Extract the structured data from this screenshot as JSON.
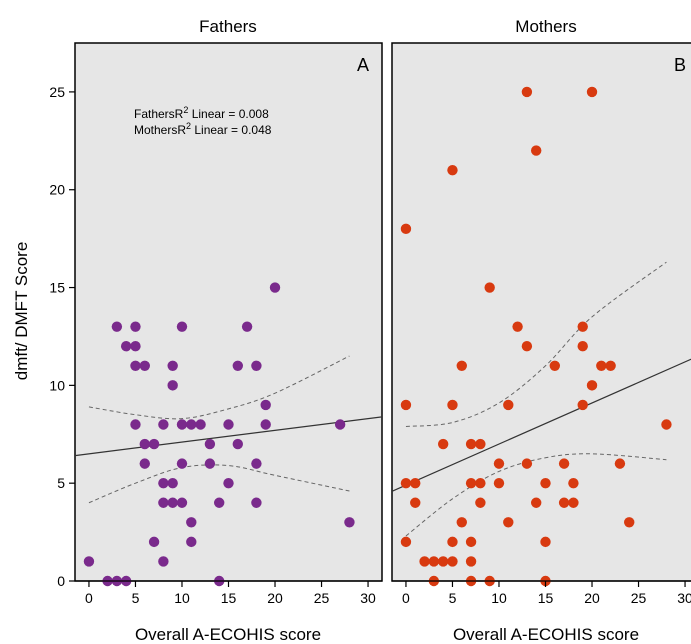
{
  "chart_data": {
    "type": "scatter",
    "ylabel": "dmft/ DMFT Score",
    "ylim": [
      0,
      27.5
    ],
    "yticks": [
      0,
      5,
      10,
      15,
      20,
      25
    ],
    "xlim": [
      -1.5,
      31.5
    ],
    "xticks": [
      0,
      5,
      10,
      15,
      20,
      25,
      30
    ],
    "grid": false,
    "annotations": [
      "FathersR",
      "2",
      " Linear = 0.008",
      "MothersR",
      "2",
      " Linear = 0.048"
    ],
    "panels": [
      {
        "strip_title": "Fathers",
        "letter": "A",
        "xlabel": "Overall A-ECOHIS score",
        "color": "#7a2a8c",
        "points": [
          [
            0,
            1
          ],
          [
            2,
            0
          ],
          [
            3,
            0
          ],
          [
            4,
            0
          ],
          [
            3,
            13
          ],
          [
            4,
            12
          ],
          [
            5,
            13
          ],
          [
            5,
            12
          ],
          [
            5,
            11
          ],
          [
            6,
            11
          ],
          [
            5,
            8
          ],
          [
            6,
            7
          ],
          [
            6,
            6
          ],
          [
            7,
            7
          ],
          [
            7,
            2
          ],
          [
            8,
            1
          ],
          [
            8,
            8
          ],
          [
            8,
            5
          ],
          [
            8,
            4
          ],
          [
            9,
            5
          ],
          [
            9,
            11
          ],
          [
            9,
            10
          ],
          [
            9,
            4
          ],
          [
            10,
            13
          ],
          [
            10,
            8
          ],
          [
            10,
            6
          ],
          [
            10,
            4
          ],
          [
            11,
            8
          ],
          [
            11,
            3
          ],
          [
            11,
            2
          ],
          [
            12,
            8
          ],
          [
            13,
            7
          ],
          [
            13,
            6
          ],
          [
            14,
            4
          ],
          [
            14,
            0
          ],
          [
            15,
            8
          ],
          [
            15,
            5
          ],
          [
            16,
            7
          ],
          [
            16,
            11
          ],
          [
            17,
            13
          ],
          [
            18,
            11
          ],
          [
            18,
            6
          ],
          [
            18,
            4
          ],
          [
            19,
            9
          ],
          [
            19,
            8
          ],
          [
            20,
            15
          ],
          [
            27,
            8
          ],
          [
            28,
            3
          ]
        ],
        "fit": {
          "intercept": 6.5,
          "slope": 0.06
        },
        "ci_upper": [
          [
            0,
            8.9
          ],
          [
            5,
            8.5
          ],
          [
            10,
            8.3
          ],
          [
            15,
            8.8
          ],
          [
            20,
            9.6
          ],
          [
            28,
            11.5
          ]
        ],
        "ci_lower": [
          [
            0,
            4.0
          ],
          [
            5,
            5.0
          ],
          [
            10,
            5.8
          ],
          [
            15,
            5.9
          ],
          [
            20,
            5.4
          ],
          [
            28,
            4.6
          ]
        ]
      },
      {
        "strip_title": "Mothers",
        "letter": "B",
        "xlabel": "Overall A-ECOHIS score",
        "color": "#d83a10",
        "points": [
          [
            0,
            18
          ],
          [
            0,
            9
          ],
          [
            0,
            5
          ],
          [
            0,
            2
          ],
          [
            1,
            5
          ],
          [
            1,
            4
          ],
          [
            2,
            1
          ],
          [
            3,
            1
          ],
          [
            3,
            0
          ],
          [
            4,
            7
          ],
          [
            4,
            1
          ],
          [
            5,
            21
          ],
          [
            5,
            9
          ],
          [
            5,
            2
          ],
          [
            5,
            1
          ],
          [
            6,
            11
          ],
          [
            6,
            3
          ],
          [
            7,
            7
          ],
          [
            7,
            5
          ],
          [
            7,
            2
          ],
          [
            7,
            1
          ],
          [
            7,
            0
          ],
          [
            8,
            7
          ],
          [
            8,
            5
          ],
          [
            8,
            4
          ],
          [
            9,
            15
          ],
          [
            9,
            0
          ],
          [
            10,
            6
          ],
          [
            10,
            5
          ],
          [
            11,
            9
          ],
          [
            11,
            3
          ],
          [
            12,
            13
          ],
          [
            13,
            25
          ],
          [
            13,
            12
          ],
          [
            13,
            6
          ],
          [
            14,
            22
          ],
          [
            14,
            4
          ],
          [
            15,
            5
          ],
          [
            15,
            2
          ],
          [
            15,
            0
          ],
          [
            16,
            11
          ],
          [
            17,
            6
          ],
          [
            17,
            4
          ],
          [
            18,
            5
          ],
          [
            18,
            4
          ],
          [
            19,
            13
          ],
          [
            19,
            12
          ],
          [
            19,
            9
          ],
          [
            20,
            25
          ],
          [
            20,
            10
          ],
          [
            21,
            11
          ],
          [
            22,
            11
          ],
          [
            23,
            6
          ],
          [
            24,
            3
          ],
          [
            28,
            8
          ]
        ],
        "fit": {
          "intercept": 4.9,
          "slope": 0.21
        },
        "ci_upper": [
          [
            0,
            7.9
          ],
          [
            5,
            8.1
          ],
          [
            10,
            9.1
          ],
          [
            15,
            11.0
          ],
          [
            20,
            13.5
          ],
          [
            28,
            16.3
          ]
        ],
        "ci_lower": [
          [
            0,
            2.3
          ],
          [
            5,
            4.2
          ],
          [
            10,
            5.6
          ],
          [
            15,
            6.3
          ],
          [
            20,
            6.5
          ],
          [
            28,
            6.2
          ]
        ]
      }
    ]
  }
}
